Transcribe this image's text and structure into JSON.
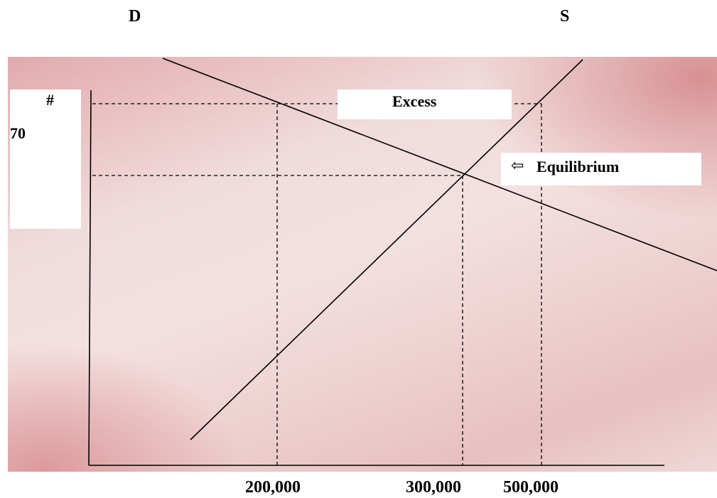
{
  "chart_data": {
    "type": "line",
    "title": "",
    "xlabel": "",
    "ylabel": "",
    "series": [
      {
        "name": "D",
        "curve": "demand",
        "slope": "down"
      },
      {
        "name": "S",
        "curve": "supply",
        "slope": "up"
      }
    ],
    "x_tick_labels": [
      "200,000",
      "300,000",
      "500,000"
    ],
    "y_tick_labels": [
      "#",
      "70"
    ],
    "annotations": [
      {
        "text": "Excess",
        "kind": "box"
      },
      {
        "text": "Equilibrium",
        "kind": "arrow-box",
        "arrow": "left-arrow-icon"
      }
    ],
    "guides": {
      "price_level_lines": 2,
      "quantity_drop_lines": 3,
      "style": "dashed"
    },
    "grid": false,
    "legend": "none"
  },
  "labels": {
    "demand": "D",
    "supply": "S",
    "price_symbol": "#",
    "price_value": "70",
    "excess": "Excess",
    "equilibrium": "Equilibrium",
    "equilibrium_arrow": "⇦",
    "x_ticks": [
      "200,000",
      "300,000",
      "500,000"
    ]
  },
  "colors": {
    "line": "#000000",
    "panel_dark": "#d9969a",
    "panel_light": "#f4e0e0",
    "box": "#ffffff"
  }
}
